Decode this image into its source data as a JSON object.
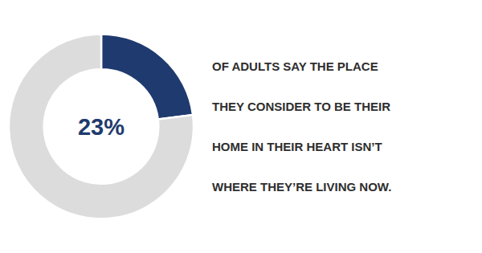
{
  "chart_data": {
    "type": "pie",
    "values": [
      23,
      77
    ],
    "value_labels": [
      "23%",
      null
    ],
    "colors": [
      "#1f3a6e",
      "#dcdcdc"
    ],
    "annotations": [
      "OF ADULTS SAY THE PLACE",
      "THEY CONSIDER TO BE THEIR",
      "HOME IN THEIR HEART ISN’T",
      "WHERE THEY’RE LIVING NOW."
    ]
  }
}
